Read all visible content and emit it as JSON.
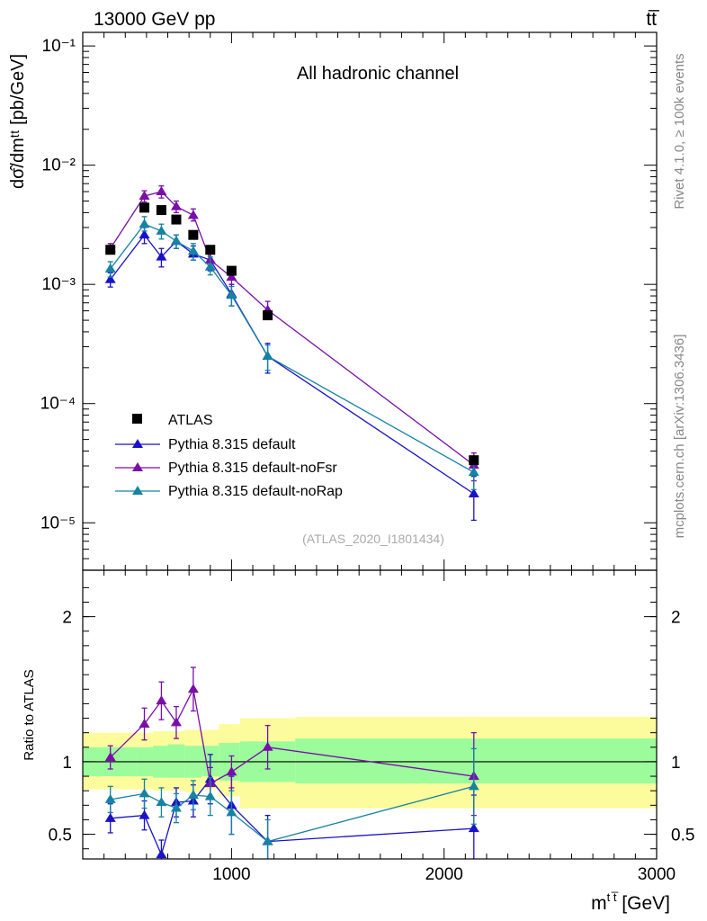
{
  "header": {
    "left": "13000 GeV pp",
    "right": "tt̅"
  },
  "side_labels": {
    "rivet": "Rivet 4.1.0, ≥ 100k events",
    "mcplots": "mcplots.cern.ch [arXiv:1306.3436]"
  },
  "colors": {
    "atlas": "#000000",
    "default": "#1a12c8",
    "noFsr": "#7a0ea8",
    "noRap": "#1583a2",
    "band_inner": "#9cfc9c",
    "band_outer": "#fcfc9c"
  },
  "chart_data": [
    {
      "type": "scatter",
      "title": "All hadronic channel",
      "ylabel": "dσ̂/dmᵗᵗ [pb/GeV]",
      "xlabel": "",
      "yscale": "log",
      "xlim": [
        300,
        3000
      ],
      "ylim": [
        4e-06,
        0.13
      ],
      "yticks": [
        {
          "value": 0.1,
          "label": "10⁻¹"
        },
        {
          "value": 0.01,
          "label": "10⁻²"
        },
        {
          "value": 0.001,
          "label": "10⁻³"
        },
        {
          "value": 0.0001,
          "label": "10⁻⁴"
        },
        {
          "value": 1e-05,
          "label": "10⁻⁵"
        }
      ],
      "watermark": "(ATLAS_2020_I1801434)",
      "legend": [
        "ATLAS",
        "Pythia 8.315 default",
        "Pythia 8.315 default-noFsr",
        "Pythia 8.315 default-noRap"
      ],
      "legend_placement": "lower-left",
      "series": [
        {
          "name": "ATLAS",
          "kind": "data",
          "x": [
            430,
            590,
            670,
            740,
            820,
            900,
            1000,
            1170,
            2140
          ],
          "y": [
            0.00195,
            0.0044,
            0.0042,
            0.0035,
            0.0026,
            0.00195,
            0.0013,
            0.00055,
            3.35e-05
          ]
        },
        {
          "name": "Pythia 8.315 default",
          "x": [
            430,
            590,
            670,
            740,
            820,
            900,
            1000,
            1170,
            2140
          ],
          "y": [
            0.0011,
            0.0026,
            0.0017,
            0.0023,
            0.0018,
            0.0016,
            0.00083,
            0.00025,
            1.75e-05
          ],
          "lo": [
            0.00095,
            0.0022,
            0.0014,
            0.002,
            0.0016,
            0.0013,
            0.00066,
            0.00018,
            1.05e-05
          ],
          "hi": [
            0.00125,
            0.003,
            0.002,
            0.0026,
            0.0021,
            0.0019,
            0.001,
            0.00032,
            2.45e-05
          ]
        },
        {
          "name": "Pythia 8.315 default-noFsr",
          "x": [
            430,
            590,
            670,
            740,
            820,
            900,
            1000,
            1170,
            2140
          ],
          "y": [
            0.002,
            0.0055,
            0.006,
            0.0045,
            0.0038,
            0.0016,
            0.00115,
            0.00061,
            3.05e-05
          ],
          "lo": [
            0.0018,
            0.0049,
            0.0053,
            0.004,
            0.0034,
            0.0014,
            0.001,
            0.00051,
            2.25e-05
          ],
          "hi": [
            0.0022,
            0.0061,
            0.0067,
            0.005,
            0.0043,
            0.0018,
            0.0013,
            0.00072,
            3.85e-05
          ]
        },
        {
          "name": "Pythia 8.315 default-noRap",
          "x": [
            430,
            590,
            670,
            740,
            820,
            900,
            1000,
            1170,
            2140
          ],
          "y": [
            0.00135,
            0.0032,
            0.0028,
            0.0023,
            0.0019,
            0.0014,
            0.00081,
            0.00025,
            2.65e-05
          ],
          "lo": [
            0.00115,
            0.0028,
            0.0024,
            0.002,
            0.0016,
            0.0012,
            0.00066,
            0.00019,
            1.9e-05
          ],
          "hi": [
            0.00155,
            0.0037,
            0.0032,
            0.0026,
            0.0022,
            0.0017,
            0.00096,
            0.00031,
            3.4e-05
          ]
        }
      ]
    },
    {
      "type": "scatter",
      "title": "",
      "ylabel": "Ratio to ATLAS",
      "xlabel": "mᵗᵗ [GeV]",
      "xlabel_parts": {
        "base": "m",
        "sup": "t t̅",
        "unit": " [GeV]"
      },
      "xlim": [
        300,
        3000
      ],
      "ylim": [
        0.33,
        2.32
      ],
      "yticks": [
        {
          "value": 0.5,
          "label": "0.5"
        },
        {
          "value": 1,
          "label": "1"
        },
        {
          "value": 2,
          "label": "2"
        }
      ],
      "xticks": [
        {
          "value": 1000,
          "label": "1000"
        },
        {
          "value": 2000,
          "label": "2000"
        },
        {
          "value": 3000,
          "label": "3000"
        }
      ],
      "reference_line": 1,
      "bands": {
        "edges": [
          300,
          550,
          630,
          700,
          780,
          860,
          940,
          1040,
          1300,
          3000
        ],
        "inner": [
          [
            0.9,
            1.1
          ],
          [
            0.9,
            1.1
          ],
          [
            0.89,
            1.11
          ],
          [
            0.89,
            1.12
          ],
          [
            0.89,
            1.11
          ],
          [
            0.9,
            1.11
          ],
          [
            0.87,
            1.13
          ],
          [
            0.86,
            1.14
          ],
          [
            0.85,
            1.16
          ]
        ],
        "outer": [
          [
            0.81,
            1.2
          ],
          [
            0.81,
            1.2
          ],
          [
            0.8,
            1.21
          ],
          [
            0.8,
            1.21
          ],
          [
            0.79,
            1.22
          ],
          [
            0.81,
            1.22
          ],
          [
            0.76,
            1.26
          ],
          [
            0.68,
            1.3
          ],
          [
            0.68,
            1.31
          ]
        ]
      },
      "series": [
        {
          "name": "Pythia 8.315 default",
          "x": [
            430,
            590,
            670,
            740,
            820,
            900,
            1000,
            1170,
            2140
          ],
          "y": [
            0.61,
            0.63,
            0.36,
            0.72,
            0.73,
            0.88,
            0.7,
            0.45,
            0.54
          ],
          "lo": [
            0.51,
            0.53,
            0.26,
            0.62,
            0.62,
            0.71,
            0.5,
            0.3,
            0.31
          ],
          "hi": [
            0.71,
            0.73,
            0.46,
            0.82,
            0.84,
            1.05,
            0.9,
            0.63,
            0.77
          ]
        },
        {
          "name": "Pythia 8.315 default-noFsr",
          "x": [
            430,
            590,
            670,
            740,
            820,
            900,
            1000,
            1170,
            2140
          ],
          "y": [
            1.03,
            1.26,
            1.42,
            1.27,
            1.5,
            0.85,
            0.93,
            1.1,
            0.9
          ],
          "lo": [
            0.95,
            1.15,
            1.29,
            1.16,
            1.35,
            0.74,
            0.82,
            0.95,
            0.63
          ],
          "hi": [
            1.11,
            1.37,
            1.55,
            1.38,
            1.65,
            0.96,
            1.04,
            1.25,
            1.2
          ]
        },
        {
          "name": "Pythia 8.315 default-noRap",
          "x": [
            430,
            590,
            670,
            740,
            820,
            900,
            1000,
            1170,
            2140
          ],
          "y": [
            0.74,
            0.78,
            0.72,
            0.68,
            0.77,
            0.76,
            0.65,
            0.45,
            0.83
          ],
          "lo": [
            0.65,
            0.68,
            0.62,
            0.58,
            0.67,
            0.63,
            0.5,
            0.3,
            0.57
          ],
          "hi": [
            0.83,
            0.88,
            0.82,
            0.78,
            0.87,
            0.89,
            0.8,
            0.6,
            1.09
          ]
        }
      ]
    }
  ]
}
